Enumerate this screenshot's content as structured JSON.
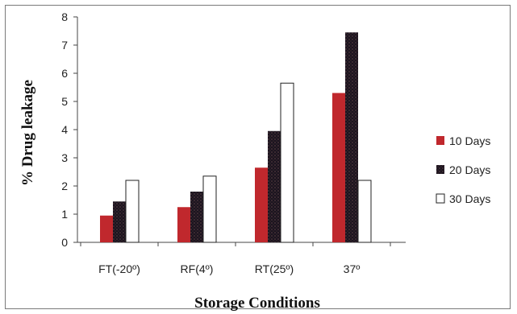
{
  "chart_data": {
    "type": "bar",
    "xlabel": "Storage Conditions",
    "ylabel": "% Drug leakage",
    "ylim": [
      0,
      8
    ],
    "yticks": [
      "0",
      "1",
      "2",
      "3",
      "4",
      "5",
      "6",
      "7",
      "8"
    ],
    "categories": [
      "FT(-20º)",
      "RF(4º)",
      "RT(25º)",
      "37º"
    ],
    "series": [
      {
        "name": "10 Days",
        "values": [
          0.95,
          1.25,
          2.65,
          5.3
        ],
        "color": "#c0282d"
      },
      {
        "name": "20 Days",
        "values": [
          1.45,
          1.8,
          3.95,
          7.45
        ],
        "color": "#1b1320"
      },
      {
        "name": "30 Days",
        "values": [
          2.2,
          2.35,
          5.65,
          2.2
        ],
        "color": "#ffffff"
      }
    ],
    "legend_position": "right",
    "grid": false
  }
}
